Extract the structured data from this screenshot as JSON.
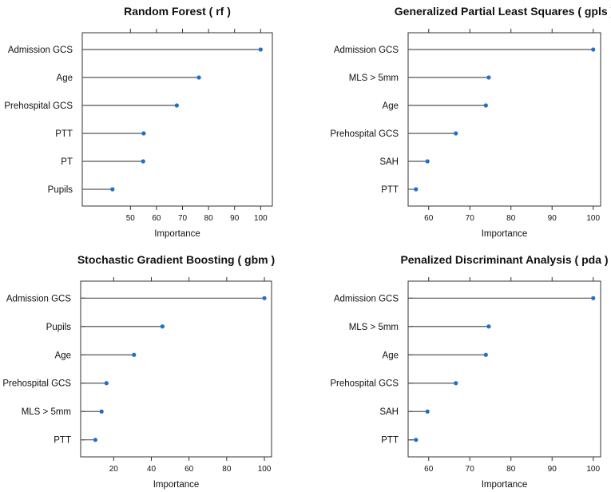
{
  "chart_data": [
    {
      "type": "lollipop",
      "title": "Random Forest  ( rf )",
      "xlabel": "Importance",
      "categories": [
        "Admission GCS",
        "Age",
        "Prehospital GCS",
        "PTT",
        "PT",
        "Pupils"
      ],
      "values": [
        100,
        76.3,
        67.8,
        55.1,
        54.9,
        43.1
      ],
      "xlim": [
        31.5,
        104.5
      ],
      "xticks": [
        50,
        60,
        70,
        80,
        90,
        100
      ],
      "colors": {
        "stem": "#555555",
        "dot": "#1f6fd1"
      }
    },
    {
      "type": "lollipop",
      "title": "Generalized Partial Least Squares  ( gpls )",
      "xlabel": "Importance",
      "categories": [
        "Admission GCS",
        "MLS > 5mm",
        "Age",
        "Prehospital GCS",
        "SAH",
        "PTT"
      ],
      "values": [
        100,
        74.6,
        73.9,
        66.6,
        59.7,
        56.9
      ],
      "xlim": [
        55.0,
        101.8
      ],
      "xticks": [
        60,
        70,
        80,
        90,
        100
      ],
      "colors": {
        "stem": "#555555",
        "dot": "#1f6fd1"
      }
    },
    {
      "type": "lollipop",
      "title": "Stochastic Gradient Boosting  ( gbm )",
      "xlabel": "Importance",
      "categories": [
        "Admission GCS",
        "Pupils",
        "Age",
        "Prehospital GCS",
        "MLS > 5mm",
        "PTT"
      ],
      "values": [
        100,
        45.9,
        30.8,
        16.2,
        13.6,
        10.3
      ],
      "xlim": [
        2.5,
        103.8
      ],
      "xticks": [
        20,
        40,
        60,
        80,
        100
      ],
      "colors": {
        "stem": "#555555",
        "dot": "#1f6fd1"
      }
    },
    {
      "type": "lollipop",
      "title": "Penalized Discriminant Analysis  ( pda )",
      "xlabel": "Importance",
      "categories": [
        "Admission GCS",
        "MLS > 5mm",
        "Age",
        "Prehospital GCS",
        "SAH",
        "PTT"
      ],
      "values": [
        100,
        74.6,
        73.9,
        66.6,
        59.7,
        56.9
      ],
      "xlim": [
        55.0,
        101.8
      ],
      "xticks": [
        60,
        70,
        80,
        90,
        100
      ],
      "colors": {
        "stem": "#555555",
        "dot": "#1f6fd1"
      }
    }
  ]
}
